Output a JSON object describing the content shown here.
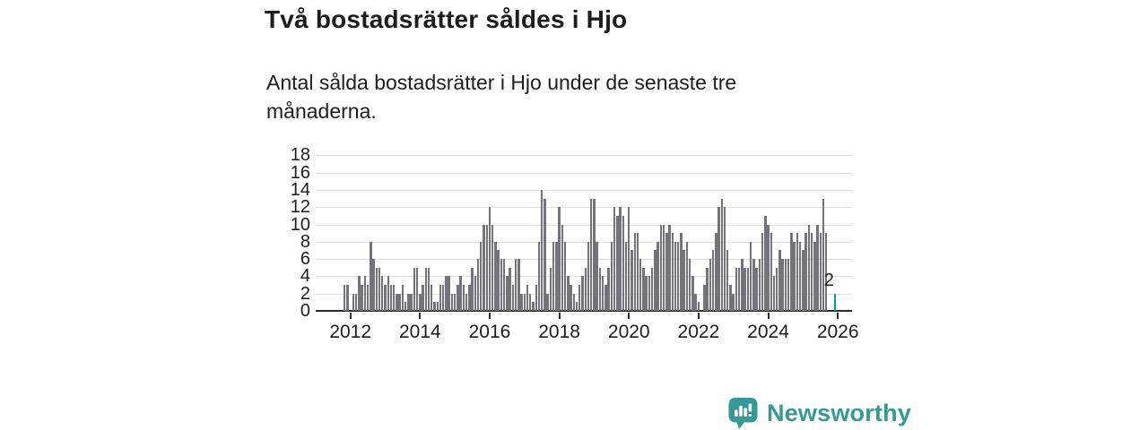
{
  "header": {
    "title": "Två bostadsrätter såldes i Hjo",
    "subtitle": "Antal sålda bostadsrätter i Hjo under de senaste tre månaderna."
  },
  "chart_data": {
    "type": "bar",
    "title": "Två bostadsrätter såldes i Hjo",
    "xlabel": "",
    "ylabel": "",
    "x_start": "2011-11",
    "x_interval": "month",
    "x_tick_years": [
      2012,
      2014,
      2016,
      2018,
      2020,
      2022,
      2024,
      2026
    ],
    "y_ticks": [
      0,
      2,
      4,
      6,
      8,
      10,
      12,
      14,
      16,
      18
    ],
    "ylim": [
      0,
      18
    ],
    "grid": "horizontal",
    "legend": "none",
    "values": [
      3,
      3,
      0,
      2,
      2,
      4,
      3,
      4,
      3,
      8,
      6,
      5,
      5,
      4,
      3,
      4,
      3,
      3,
      2,
      2,
      3,
      1,
      2,
      2,
      5,
      5,
      2,
      3,
      5,
      5,
      3,
      1,
      1,
      3,
      3,
      4,
      4,
      2,
      2,
      3,
      4,
      3,
      2,
      3,
      5,
      4,
      6,
      8,
      10,
      10,
      12,
      10,
      8,
      7,
      6,
      6,
      4,
      5,
      3,
      6,
      6,
      2,
      2,
      3,
      2,
      1,
      3,
      8,
      14,
      13,
      2,
      5,
      8,
      8,
      12,
      10,
      8,
      4,
      3,
      2,
      1,
      3,
      4,
      5,
      8,
      13,
      13,
      8,
      5,
      4,
      3,
      5,
      8,
      12,
      11,
      12,
      11,
      8,
      12,
      7,
      9,
      9,
      6,
      5,
      4,
      4,
      5,
      7,
      8,
      10,
      10,
      9,
      10,
      9,
      8,
      8,
      9,
      7,
      8,
      6,
      4,
      2,
      1,
      0,
      3,
      5,
      6,
      7,
      9,
      12,
      13,
      12,
      7,
      3,
      2,
      5,
      5,
      6,
      5,
      5,
      8,
      6,
      5,
      6,
      9,
      11,
      10,
      9,
      4,
      5,
      7,
      6,
      6,
      6,
      9,
      8,
      9,
      8,
      7,
      9,
      10,
      9,
      8,
      10,
      9,
      13,
      9,
      0,
      0,
      2
    ],
    "highlight": {
      "index": 169,
      "value": 2,
      "label": "2"
    }
  },
  "colors": {
    "bar": "#73737b",
    "highlight": "#00a099",
    "gridline": "#e0e0e0",
    "axis": "#2b2b2b",
    "text": "#1d1d1b",
    "brand": "#359a93"
  },
  "branding": {
    "logo_text": "Newsworthy",
    "logo_icon": "newsworthy-speech-bubble-bar-chart-icon"
  }
}
